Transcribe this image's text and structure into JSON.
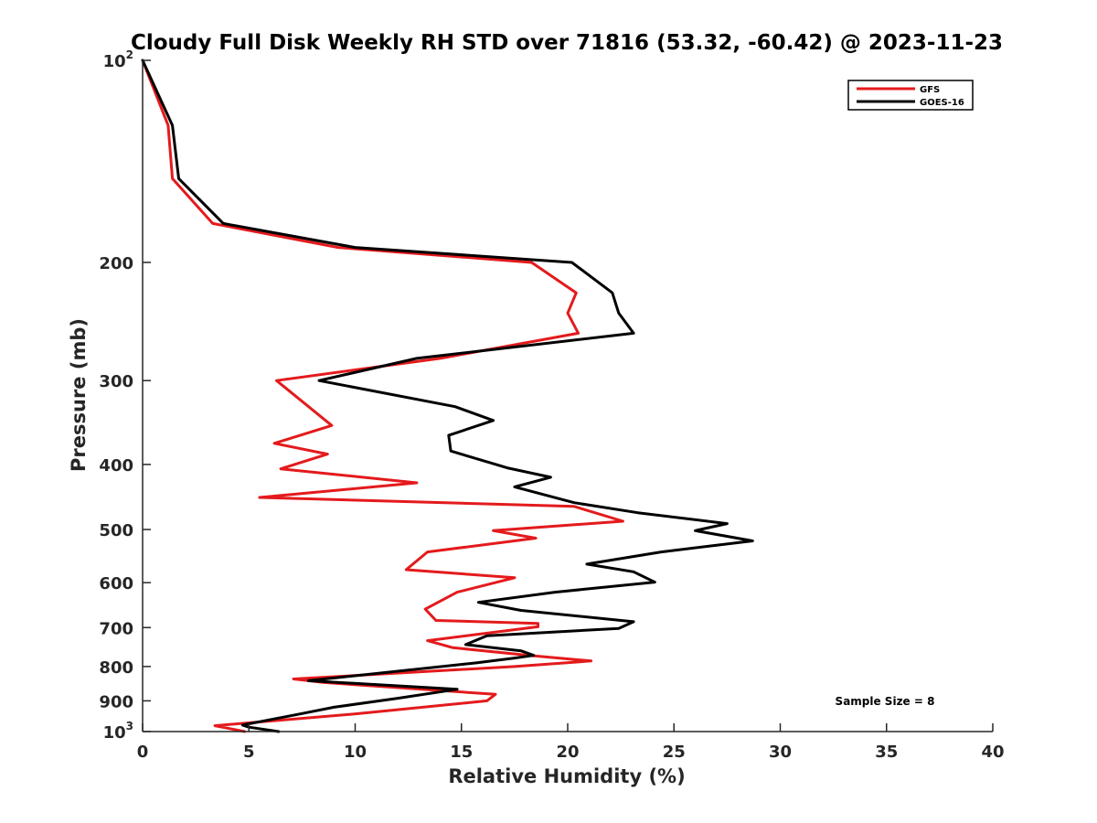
{
  "chart_data": {
    "type": "line",
    "title": "Cloudy Full Disk Weekly RH STD over 71816 (53.32, -60.42) @ 2023-11-23",
    "xlabel": "Relative Humidity (%)",
    "ylabel": "Pressure (mb)",
    "xlim": [
      0,
      40
    ],
    "ylim": [
      100,
      1000
    ],
    "y_scale": "log",
    "y_reversed": true,
    "x_ticks": [
      "0",
      "5",
      "10",
      "15",
      "20",
      "25",
      "30",
      "35",
      "40"
    ],
    "y_ticks": [
      {
        "value": 100,
        "base": "10",
        "exp": "2"
      },
      {
        "value": 200,
        "label": "200"
      },
      {
        "value": 300,
        "label": "300"
      },
      {
        "value": 400,
        "label": "400"
      },
      {
        "value": 500,
        "label": "500"
      },
      {
        "value": 600,
        "label": "600"
      },
      {
        "value": 700,
        "label": "700"
      },
      {
        "value": 800,
        "label": "800"
      },
      {
        "value": 900,
        "label": "900"
      },
      {
        "value": 1000,
        "base": "10",
        "exp": "3"
      }
    ],
    "legend_position": "top-right",
    "annotation": "Sample Size = 8",
    "series": [
      {
        "name": "GFS",
        "color": "#e41a1c",
        "points": [
          [
            0.0,
            100
          ],
          [
            1.2,
            125
          ],
          [
            1.4,
            150
          ],
          [
            3.3,
            175
          ],
          [
            9.2,
            190
          ],
          [
            18.3,
            200
          ],
          [
            20.4,
            222
          ],
          [
            20.0,
            238
          ],
          [
            20.5,
            255
          ],
          [
            14.0,
            278
          ],
          [
            6.3,
            300
          ],
          [
            8.9,
            350
          ],
          [
            6.2,
            372
          ],
          [
            8.7,
            386
          ],
          [
            6.5,
            406
          ],
          [
            12.9,
            426
          ],
          [
            5.5,
            448
          ],
          [
            20.3,
            462
          ],
          [
            22.6,
            486
          ],
          [
            16.5,
            502
          ],
          [
            18.5,
            515
          ],
          [
            13.4,
            540
          ],
          [
            12.4,
            574
          ],
          [
            17.5,
            590
          ],
          [
            14.8,
            620
          ],
          [
            13.3,
            657
          ],
          [
            13.8,
            683
          ],
          [
            18.6,
            690
          ],
          [
            18.6,
            698
          ],
          [
            13.4,
            732
          ],
          [
            14.6,
            750
          ],
          [
            18.2,
            770
          ],
          [
            21.1,
            785
          ],
          [
            17.5,
            800
          ],
          [
            7.1,
            835
          ],
          [
            8.5,
            845
          ],
          [
            16.6,
            880
          ],
          [
            16.2,
            900
          ],
          [
            10.2,
            940
          ],
          [
            3.4,
            980
          ],
          [
            4.8,
            1000
          ]
        ]
      },
      {
        "name": "GOES-16",
        "color": "#000000",
        "points": [
          [
            0.0,
            100
          ],
          [
            1.4,
            125
          ],
          [
            1.7,
            150
          ],
          [
            3.8,
            175
          ],
          [
            10.0,
            190
          ],
          [
            20.2,
            200
          ],
          [
            22.1,
            222
          ],
          [
            22.4,
            238
          ],
          [
            23.1,
            255
          ],
          [
            12.9,
            278
          ],
          [
            8.3,
            300
          ],
          [
            14.7,
            328
          ],
          [
            16.5,
            344
          ],
          [
            14.4,
            362
          ],
          [
            14.5,
            382
          ],
          [
            17.2,
            405
          ],
          [
            19.2,
            418
          ],
          [
            17.5,
            432
          ],
          [
            20.3,
            456
          ],
          [
            23.3,
            472
          ],
          [
            27.5,
            490
          ],
          [
            26.0,
            502
          ],
          [
            28.7,
            520
          ],
          [
            24.4,
            540
          ],
          [
            20.9,
            563
          ],
          [
            23.1,
            578
          ],
          [
            24.1,
            599
          ],
          [
            19.4,
            620
          ],
          [
            15.8,
            642
          ],
          [
            17.8,
            660
          ],
          [
            23.1,
            686
          ],
          [
            22.4,
            702
          ],
          [
            16.2,
            720
          ],
          [
            15.2,
            742
          ],
          [
            17.8,
            758
          ],
          [
            18.4,
            770
          ],
          [
            17.5,
            777
          ],
          [
            15.7,
            790
          ],
          [
            7.8,
            840
          ],
          [
            14.8,
            865
          ],
          [
            12.0,
            892
          ],
          [
            9.0,
            920
          ],
          [
            7.5,
            940
          ],
          [
            4.7,
            978
          ],
          [
            5.0,
            985
          ],
          [
            6.4,
            1000
          ]
        ]
      }
    ]
  }
}
